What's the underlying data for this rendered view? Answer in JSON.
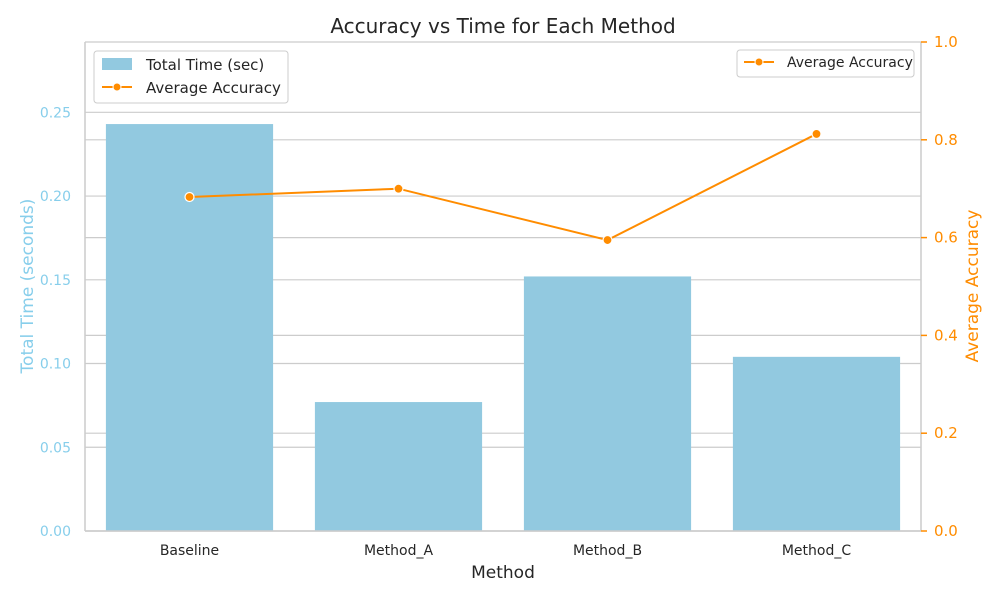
{
  "chart_data": {
    "type": "bar+line",
    "title": "Accuracy vs Time for Each Method",
    "xlabel": "Method",
    "ylabel_left": "Total Time (seconds)",
    "ylabel_right": "Average Accuracy",
    "categories": [
      "Baseline",
      "Method_A",
      "Method_B",
      "Method_C"
    ],
    "series": [
      {
        "name": "Total Time (sec)",
        "type": "bar",
        "axis": "left",
        "values": [
          0.243,
          0.077,
          0.152,
          0.104
        ]
      },
      {
        "name": "Average Accuracy",
        "type": "line",
        "axis": "right",
        "values": [
          0.683,
          0.7,
          0.595,
          0.812
        ]
      }
    ],
    "ylim_left": [
      0,
      0.292
    ],
    "ylim_right": [
      0,
      1.0
    ],
    "yticks_left": [
      "0.00",
      "0.05",
      "0.10",
      "0.15",
      "0.20",
      "0.25"
    ],
    "yticks_right": [
      "0.0",
      "0.2",
      "0.4",
      "0.6",
      "0.8",
      "1.0"
    ],
    "grid": true,
    "legend_left": {
      "placement": "top-left",
      "entries": [
        "Total Time (sec)",
        "Average Accuracy"
      ]
    },
    "legend_right": {
      "placement": "top-right",
      "entries": [
        "Average Accuracy"
      ]
    },
    "colors": {
      "bar": "#92c9e0",
      "line": "#ff8c00",
      "left_axis": "#87ceeb",
      "right_axis": "#ff8c00",
      "grid": "#cccccc",
      "text": "#262626"
    }
  }
}
